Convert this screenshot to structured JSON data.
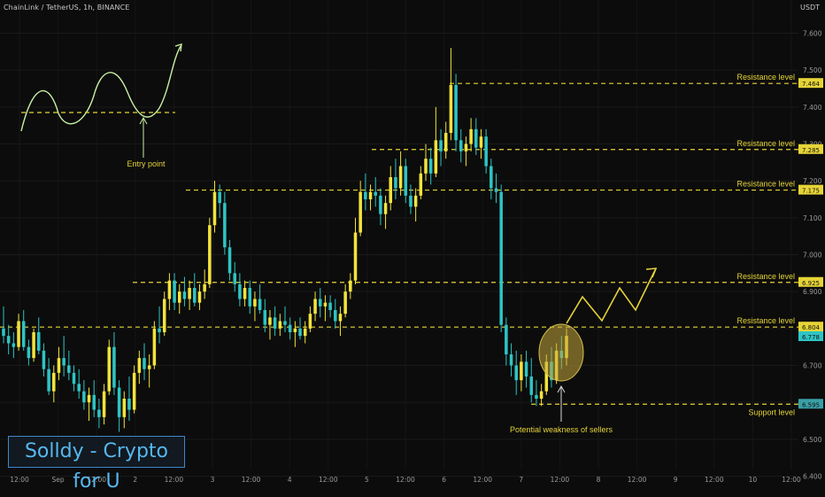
{
  "header": {
    "symbol": "ChainLink / TetherUS",
    "interval": "1h",
    "exchange": "BINANCE",
    "currency": "USDT"
  },
  "brand": {
    "label": "Solldy - Crypto for U"
  },
  "colors": {
    "background": "#0c0c0c",
    "bull": "#f3e33c",
    "bear": "#2ec4c4",
    "level_line": "#e6d437",
    "label_text": "#e6d437",
    "axis_text": "#9a9a9a",
    "support_tag": "#3a9fa6",
    "price_tag": "#2ec4c4",
    "brand_border": "#3f86c8",
    "brand_text": "#56b8f0"
  },
  "chart_data": {
    "type": "candlestick",
    "y_axis": {
      "ticks": [
        6.4,
        6.5,
        6.6,
        6.7,
        6.8,
        6.9,
        7.0,
        7.1,
        7.2,
        7.3,
        7.4,
        7.5,
        7.6
      ],
      "tick_labels": [
        "6.400",
        "6.500",
        "6.600",
        "6.700",
        "6.800",
        "6.900",
        "7.000",
        "7.100",
        "7.200",
        "7.300",
        "7.400",
        "7.500",
        "7.600"
      ],
      "range": [
        6.37,
        7.69
      ]
    },
    "x_axis": {
      "labels": [
        "12:00",
        "Sep",
        "12:00",
        "2",
        "12:00",
        "3",
        "12:00",
        "4",
        "12:00",
        "5",
        "12:00",
        "6",
        "12:00",
        "7",
        "12:00",
        "8",
        "12:00",
        "9",
        "12:00",
        "10",
        "12:00"
      ]
    },
    "levels": [
      {
        "label": "Resistance level",
        "value": 7.464,
        "tag": "7.464"
      },
      {
        "label": "Resistance level",
        "value": 7.285,
        "tag": "7.285"
      },
      {
        "label": "Resistance level",
        "value": 7.175,
        "tag": "7.175"
      },
      {
        "label": "Resistance level",
        "value": 6.925,
        "tag": "6.925"
      },
      {
        "label": "Resistance level",
        "value": 6.804,
        "tag": "6.804"
      },
      {
        "label": "Support level",
        "value": 6.595,
        "tag": "6.595"
      }
    ],
    "current_price": {
      "value": 6.778,
      "tag": "6.778"
    },
    "annotations": {
      "entry_point": "Entry point",
      "weakness": "Potential weakness of sellers"
    },
    "candles": [
      {
        "o": 6.8,
        "h": 6.86,
        "l": 6.76,
        "c": 6.78
      },
      {
        "o": 6.78,
        "h": 6.81,
        "l": 6.73,
        "c": 6.76
      },
      {
        "o": 6.76,
        "h": 6.79,
        "l": 6.72,
        "c": 6.75
      },
      {
        "o": 6.75,
        "h": 6.84,
        "l": 6.74,
        "c": 6.82
      },
      {
        "o": 6.82,
        "h": 6.85,
        "l": 6.74,
        "c": 6.75
      },
      {
        "o": 6.75,
        "h": 6.77,
        "l": 6.7,
        "c": 6.72
      },
      {
        "o": 6.72,
        "h": 6.8,
        "l": 6.71,
        "c": 6.79
      },
      {
        "o": 6.79,
        "h": 6.83,
        "l": 6.73,
        "c": 6.74
      },
      {
        "o": 6.74,
        "h": 6.76,
        "l": 6.67,
        "c": 6.69
      },
      {
        "o": 6.69,
        "h": 6.72,
        "l": 6.62,
        "c": 6.63
      },
      {
        "o": 6.63,
        "h": 6.7,
        "l": 6.6,
        "c": 6.68
      },
      {
        "o": 6.68,
        "h": 6.75,
        "l": 6.66,
        "c": 6.72
      },
      {
        "o": 6.72,
        "h": 6.78,
        "l": 6.67,
        "c": 6.7
      },
      {
        "o": 6.7,
        "h": 6.74,
        "l": 6.66,
        "c": 6.68
      },
      {
        "o": 6.68,
        "h": 6.7,
        "l": 6.63,
        "c": 6.65
      },
      {
        "o": 6.65,
        "h": 6.69,
        "l": 6.61,
        "c": 6.63
      },
      {
        "o": 6.63,
        "h": 6.66,
        "l": 6.58,
        "c": 6.6
      },
      {
        "o": 6.6,
        "h": 6.64,
        "l": 6.55,
        "c": 6.62
      },
      {
        "o": 6.62,
        "h": 6.66,
        "l": 6.56,
        "c": 6.58
      },
      {
        "o": 6.58,
        "h": 6.61,
        "l": 6.53,
        "c": 6.56
      },
      {
        "o": 6.56,
        "h": 6.65,
        "l": 6.54,
        "c": 6.63
      },
      {
        "o": 6.63,
        "h": 6.77,
        "l": 6.62,
        "c": 6.75
      },
      {
        "o": 6.75,
        "h": 6.79,
        "l": 6.62,
        "c": 6.64
      },
      {
        "o": 6.64,
        "h": 6.66,
        "l": 6.52,
        "c": 6.56
      },
      {
        "o": 6.56,
        "h": 6.63,
        "l": 6.53,
        "c": 6.61
      },
      {
        "o": 6.61,
        "h": 6.67,
        "l": 6.55,
        "c": 6.58
      },
      {
        "o": 6.58,
        "h": 6.7,
        "l": 6.57,
        "c": 6.68
      },
      {
        "o": 6.68,
        "h": 6.74,
        "l": 6.65,
        "c": 6.72
      },
      {
        "o": 6.72,
        "h": 6.76,
        "l": 6.66,
        "c": 6.69
      },
      {
        "o": 6.69,
        "h": 6.73,
        "l": 6.64,
        "c": 6.7
      },
      {
        "o": 6.7,
        "h": 6.82,
        "l": 6.69,
        "c": 6.8
      },
      {
        "o": 6.8,
        "h": 6.86,
        "l": 6.76,
        "c": 6.79
      },
      {
        "o": 6.79,
        "h": 6.9,
        "l": 6.78,
        "c": 6.88
      },
      {
        "o": 6.88,
        "h": 6.95,
        "l": 6.85,
        "c": 6.93
      },
      {
        "o": 6.93,
        "h": 6.95,
        "l": 6.85,
        "c": 6.87
      },
      {
        "o": 6.87,
        "h": 6.92,
        "l": 6.84,
        "c": 6.9
      },
      {
        "o": 6.9,
        "h": 6.94,
        "l": 6.86,
        "c": 6.88
      },
      {
        "o": 6.88,
        "h": 6.93,
        "l": 6.85,
        "c": 6.91
      },
      {
        "o": 6.91,
        "h": 6.95,
        "l": 6.86,
        "c": 6.87
      },
      {
        "o": 6.87,
        "h": 6.92,
        "l": 6.85,
        "c": 6.9
      },
      {
        "o": 6.9,
        "h": 6.96,
        "l": 6.88,
        "c": 6.92
      },
      {
        "o": 6.92,
        "h": 7.1,
        "l": 6.91,
        "c": 7.08
      },
      {
        "o": 7.08,
        "h": 7.2,
        "l": 7.06,
        "c": 7.17
      },
      {
        "o": 7.17,
        "h": 7.19,
        "l": 7.1,
        "c": 7.14
      },
      {
        "o": 7.14,
        "h": 7.17,
        "l": 7.0,
        "c": 7.02
      },
      {
        "o": 7.02,
        "h": 7.04,
        "l": 6.93,
        "c": 6.95
      },
      {
        "o": 6.95,
        "h": 6.98,
        "l": 6.9,
        "c": 6.92
      },
      {
        "o": 6.92,
        "h": 6.95,
        "l": 6.86,
        "c": 6.88
      },
      {
        "o": 6.88,
        "h": 6.93,
        "l": 6.86,
        "c": 6.91
      },
      {
        "o": 6.91,
        "h": 6.93,
        "l": 6.84,
        "c": 6.86
      },
      {
        "o": 6.86,
        "h": 6.9,
        "l": 6.82,
        "c": 6.88
      },
      {
        "o": 6.88,
        "h": 6.92,
        "l": 6.84,
        "c": 6.85
      },
      {
        "o": 6.85,
        "h": 6.88,
        "l": 6.79,
        "c": 6.81
      },
      {
        "o": 6.81,
        "h": 6.85,
        "l": 6.77,
        "c": 6.83
      },
      {
        "o": 6.83,
        "h": 6.86,
        "l": 6.78,
        "c": 6.8
      },
      {
        "o": 6.8,
        "h": 6.84,
        "l": 6.78,
        "c": 6.82
      },
      {
        "o": 6.82,
        "h": 6.86,
        "l": 6.79,
        "c": 6.81
      },
      {
        "o": 6.81,
        "h": 6.83,
        "l": 6.77,
        "c": 6.79
      },
      {
        "o": 6.79,
        "h": 6.82,
        "l": 6.75,
        "c": 6.8
      },
      {
        "o": 6.8,
        "h": 6.83,
        "l": 6.77,
        "c": 6.78
      },
      {
        "o": 6.78,
        "h": 6.82,
        "l": 6.76,
        "c": 6.8
      },
      {
        "o": 6.8,
        "h": 6.86,
        "l": 6.79,
        "c": 6.84
      },
      {
        "o": 6.84,
        "h": 6.9,
        "l": 6.82,
        "c": 6.88
      },
      {
        "o": 6.88,
        "h": 6.91,
        "l": 6.83,
        "c": 6.86
      },
      {
        "o": 6.86,
        "h": 6.89,
        "l": 6.82,
        "c": 6.87
      },
      {
        "o": 6.87,
        "h": 6.89,
        "l": 6.83,
        "c": 6.85
      },
      {
        "o": 6.85,
        "h": 6.88,
        "l": 6.8,
        "c": 6.82
      },
      {
        "o": 6.82,
        "h": 6.86,
        "l": 6.78,
        "c": 6.84
      },
      {
        "o": 6.84,
        "h": 6.92,
        "l": 6.83,
        "c": 6.9
      },
      {
        "o": 6.9,
        "h": 6.95,
        "l": 6.88,
        "c": 6.93
      },
      {
        "o": 6.93,
        "h": 7.1,
        "l": 6.92,
        "c": 7.06
      },
      {
        "o": 7.06,
        "h": 7.2,
        "l": 7.05,
        "c": 7.17
      },
      {
        "o": 7.17,
        "h": 7.22,
        "l": 7.12,
        "c": 7.15
      },
      {
        "o": 7.15,
        "h": 7.19,
        "l": 7.12,
        "c": 7.17
      },
      {
        "o": 7.17,
        "h": 7.21,
        "l": 7.13,
        "c": 7.16
      },
      {
        "o": 7.16,
        "h": 7.18,
        "l": 7.08,
        "c": 7.11
      },
      {
        "o": 7.11,
        "h": 7.16,
        "l": 7.07,
        "c": 7.14
      },
      {
        "o": 7.14,
        "h": 7.24,
        "l": 7.12,
        "c": 7.21
      },
      {
        "o": 7.21,
        "h": 7.26,
        "l": 7.15,
        "c": 7.18
      },
      {
        "o": 7.18,
        "h": 7.28,
        "l": 7.16,
        "c": 7.24
      },
      {
        "o": 7.24,
        "h": 7.26,
        "l": 7.14,
        "c": 7.16
      },
      {
        "o": 7.16,
        "h": 7.19,
        "l": 7.11,
        "c": 7.13
      },
      {
        "o": 7.13,
        "h": 7.18,
        "l": 7.09,
        "c": 7.16
      },
      {
        "o": 7.16,
        "h": 7.24,
        "l": 7.15,
        "c": 7.22
      },
      {
        "o": 7.22,
        "h": 7.3,
        "l": 7.2,
        "c": 7.26
      },
      {
        "o": 7.26,
        "h": 7.29,
        "l": 7.19,
        "c": 7.22
      },
      {
        "o": 7.22,
        "h": 7.4,
        "l": 7.21,
        "c": 7.31
      },
      {
        "o": 7.31,
        "h": 7.34,
        "l": 7.24,
        "c": 7.28
      },
      {
        "o": 7.28,
        "h": 7.36,
        "l": 7.26,
        "c": 7.33
      },
      {
        "o": 7.33,
        "h": 7.56,
        "l": 7.31,
        "c": 7.46
      },
      {
        "o": 7.46,
        "h": 7.49,
        "l": 7.28,
        "c": 7.31
      },
      {
        "o": 7.31,
        "h": 7.34,
        "l": 7.25,
        "c": 7.28
      },
      {
        "o": 7.28,
        "h": 7.32,
        "l": 7.24,
        "c": 7.3
      },
      {
        "o": 7.3,
        "h": 7.37,
        "l": 7.28,
        "c": 7.34
      },
      {
        "o": 7.34,
        "h": 7.37,
        "l": 7.27,
        "c": 7.29
      },
      {
        "o": 7.29,
        "h": 7.34,
        "l": 7.26,
        "c": 7.32
      },
      {
        "o": 7.32,
        "h": 7.34,
        "l": 7.22,
        "c": 7.24
      },
      {
        "o": 7.24,
        "h": 7.26,
        "l": 7.15,
        "c": 7.18
      },
      {
        "o": 7.18,
        "h": 7.22,
        "l": 7.14,
        "c": 7.17
      },
      {
        "o": 7.17,
        "h": 7.19,
        "l": 6.79,
        "c": 6.81
      },
      {
        "o": 6.81,
        "h": 6.83,
        "l": 6.7,
        "c": 6.73
      },
      {
        "o": 6.73,
        "h": 6.76,
        "l": 6.67,
        "c": 6.7
      },
      {
        "o": 6.7,
        "h": 6.74,
        "l": 6.62,
        "c": 6.66
      },
      {
        "o": 6.66,
        "h": 6.73,
        "l": 6.63,
        "c": 6.71
      },
      {
        "o": 6.71,
        "h": 6.74,
        "l": 6.64,
        "c": 6.67
      },
      {
        "o": 6.67,
        "h": 6.72,
        "l": 6.6,
        "c": 6.62
      },
      {
        "o": 6.62,
        "h": 6.66,
        "l": 6.59,
        "c": 6.61
      },
      {
        "o": 6.61,
        "h": 6.65,
        "l": 6.59,
        "c": 6.63
      },
      {
        "o": 6.63,
        "h": 6.73,
        "l": 6.62,
        "c": 6.71
      },
      {
        "o": 6.71,
        "h": 6.75,
        "l": 6.64,
        "c": 6.66
      },
      {
        "o": 6.66,
        "h": 6.76,
        "l": 6.65,
        "c": 6.74
      },
      {
        "o": 6.74,
        "h": 6.78,
        "l": 6.69,
        "c": 6.72
      },
      {
        "o": 6.72,
        "h": 6.8,
        "l": 6.7,
        "c": 6.78
      }
    ]
  }
}
